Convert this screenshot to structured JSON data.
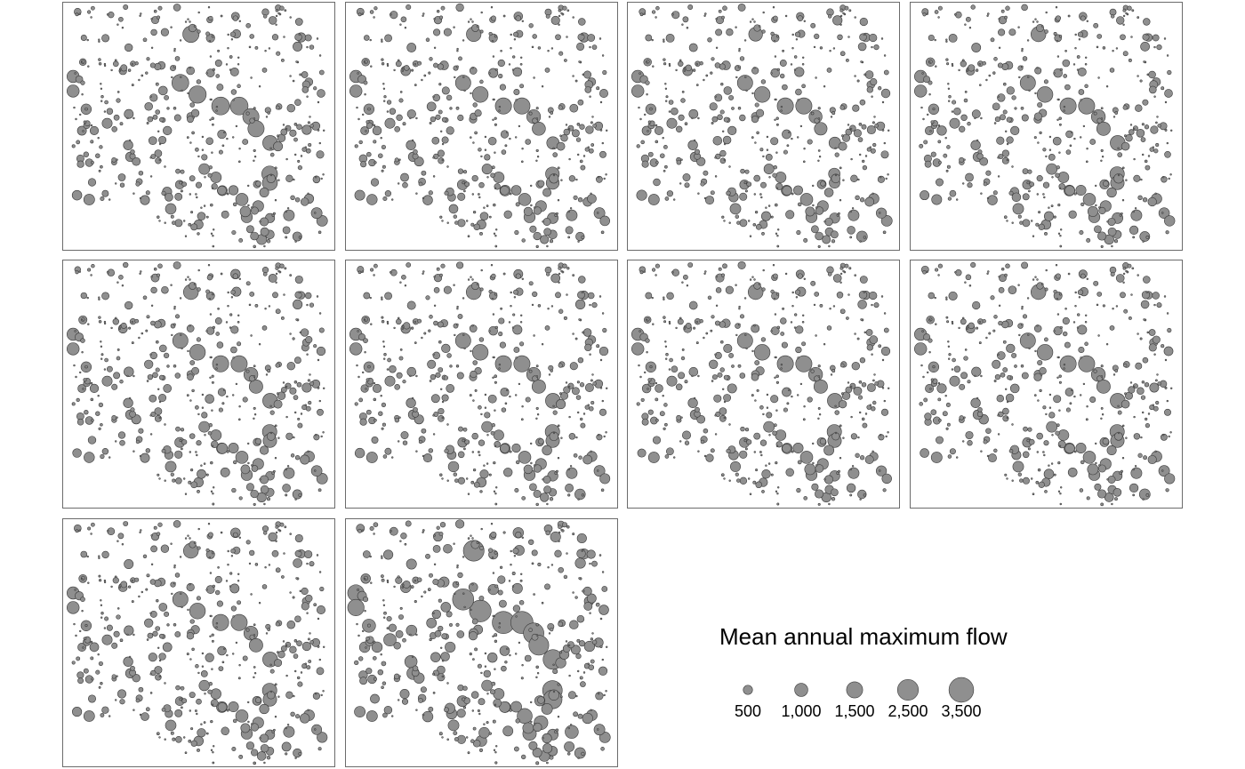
{
  "chart_data": {
    "type": "scatter",
    "panel_count": 10,
    "panel_layout": "4 columns x 3 rows, last row holds 2 panels",
    "marker_color": "#8f8f8f",
    "marker_edge_color": "#3a3a3a",
    "legend": {
      "title": "Mean annual maximum flow",
      "placement": "bottom-right",
      "entries": [
        {
          "label": "500",
          "value": 500
        },
        {
          "label": "1,000",
          "value": 1000
        },
        {
          "label": "1,500",
          "value": 1500
        },
        {
          "label": "2,500",
          "value": 2500
        },
        {
          "label": "3,500",
          "value": 3500
        }
      ]
    },
    "stations": [
      {
        "x": 0.473,
        "y": 0.869,
        "v": [
          1520,
          1234,
          1098,
          1282,
          1282,
          1282,
          1282,
          1282,
          1282,
          2464
        ]
      },
      {
        "x": 0.434,
        "y": 0.673,
        "v": [
          1637,
          1344,
          1344,
          1344,
          1344,
          1344,
          1344,
          1344,
          1344,
          2584
        ]
      },
      {
        "x": 0.497,
        "y": 0.626,
        "v": [
          1738,
          1423,
          1423,
          1423,
          1423,
          1423,
          1423,
          1423,
          1423,
          2704
        ]
      },
      {
        "x": 0.582,
        "y": 0.58,
        "v": [
          1834,
          1517,
          1517,
          1517,
          1517,
          1517,
          1517,
          1517,
          1517,
          2850
        ]
      },
      {
        "x": 0.65,
        "y": 0.58,
        "v": [
          1834,
          1517,
          1517,
          1517,
          1517,
          1517,
          1517,
          1517,
          1517,
          2850
        ]
      },
      {
        "x": 0.693,
        "y": 0.537,
        "v": [
          1520,
          1090,
          980,
          1120,
          1120,
          1120,
          1120,
          1120,
          1120,
          2400
        ]
      },
      {
        "x": 0.712,
        "y": 0.488,
        "v": [
          1520,
          1008,
          930,
          1060,
          1060,
          1060,
          1060,
          1060,
          1060,
          2270
        ]
      },
      {
        "x": 0.764,
        "y": 0.431,
        "v": [
          1280,
          890,
          790,
          1280,
          1280,
          1280,
          1280,
          1280,
          1280,
          2220
        ]
      },
      {
        "x": 0.762,
        "y": 0.306,
        "v": [
          1418,
          1080,
          760,
          1190,
          1190,
          1190,
          1190,
          1190,
          1190,
          2220
        ]
      },
      {
        "x": 0.763,
        "y": 0.27,
        "v": [
          1300,
          960,
          660,
          1060,
          1060,
          1060,
          1060,
          1060,
          1060,
          2000
        ]
      },
      {
        "x": 0.04,
        "y": 0.699,
        "v": [
          860,
          860,
          860,
          860,
          860,
          860,
          860,
          860,
          860,
          1550
        ]
      },
      {
        "x": 0.04,
        "y": 0.64,
        "v": [
          860,
          860,
          860,
          860,
          860,
          860,
          860,
          860,
          860,
          1550
        ]
      },
      {
        "x": 0.088,
        "y": 0.567,
        "v": [
          620,
          620,
          620,
          620,
          620,
          620,
          620,
          620,
          620,
          1000
        ]
      },
      {
        "x": 0.165,
        "y": 0.51,
        "v": [
          580,
          580,
          580,
          580,
          580,
          580,
          580,
          580,
          580,
          900
        ]
      },
      {
        "x": 0.242,
        "y": 0.422,
        "v": [
          520,
          520,
          520,
          520,
          520,
          520,
          520,
          520,
          520,
          880
        ]
      },
      {
        "x": 0.25,
        "y": 0.375,
        "v": [
          520,
          520,
          520,
          520,
          520,
          520,
          520,
          520,
          520,
          880
        ]
      },
      {
        "x": 0.66,
        "y": 0.203,
        "v": [
          880,
          880,
          880,
          880,
          880,
          880,
          880,
          880,
          880,
          1300
        ]
      },
      {
        "x": 0.72,
        "y": 0.176,
        "v": [
          700,
          700,
          700,
          700,
          700,
          700,
          700,
          700,
          700,
          1100
        ]
      },
      {
        "x": 0.678,
        "y": 0.132,
        "v": [
          720,
          720,
          720,
          720,
          720,
          720,
          720,
          720,
          720,
          1050
        ]
      },
      {
        "x": 0.833,
        "y": 0.139,
        "v": [
          680,
          680,
          680,
          680,
          680,
          680,
          680,
          680,
          680,
          1000
        ]
      }
    ],
    "small_station_count": 430,
    "small_station_value_range": [
      0,
      450
    ]
  }
}
